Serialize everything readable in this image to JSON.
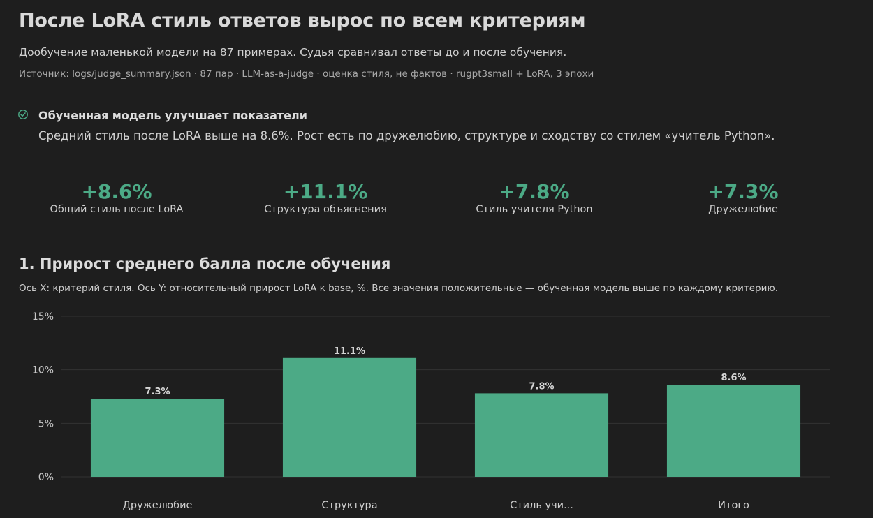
{
  "header": {
    "title": "После LoRA стиль ответов вырос по всем критериям",
    "subtitle": "Дообучение маленькой модели на 87 примерах. Судья сравнивал ответы до и после обучения.",
    "source": "Источник: logs/judge_summary.json · 87 пар · LLM-as-a-judge · оценка стиля, не фактов · rugpt3small + LoRA, 3 эпохи"
  },
  "insight": {
    "icon": "check-circle-icon",
    "title": "Обученная модель улучшает показатели",
    "text": "Средний стиль после LoRA выше на 8.6%. Рост есть по дружелюбию, структуре и сходству со стилем «учитель Python»."
  },
  "kpis": [
    {
      "value": "+8.6%",
      "label": "Общий стиль после LoRA"
    },
    {
      "value": "+11.1%",
      "label": "Структура объяснения"
    },
    {
      "value": "+7.8%",
      "label": "Стиль учителя Python"
    },
    {
      "value": "+7.3%",
      "label": "Дружелюбие"
    }
  ],
  "colors": {
    "background": "#1e1e1e",
    "accent": "#4caa86",
    "grid": "#333333"
  },
  "chart_section": {
    "title": "1. Прирост среднего балла после обучения",
    "description": "Ось X: критерий стиля. Ось Y: относительный прирост LoRA к base, %. Все значения положительные — обученная модель выше по каждому критерию."
  },
  "chart_data": {
    "type": "bar",
    "categories": [
      "Дружелюбие",
      "Структура",
      "Стиль учи...",
      "Итого"
    ],
    "values": [
      7.3,
      11.1,
      7.8,
      8.6
    ],
    "data_labels": [
      "7.3%",
      "11.1%",
      "7.8%",
      "8.6%"
    ],
    "ylim": [
      0,
      15
    ],
    "yticks": [
      0,
      5,
      10,
      15
    ],
    "ytick_labels": [
      "0%",
      "5%",
      "10%",
      "15%"
    ],
    "grid": true,
    "legend": "none"
  }
}
